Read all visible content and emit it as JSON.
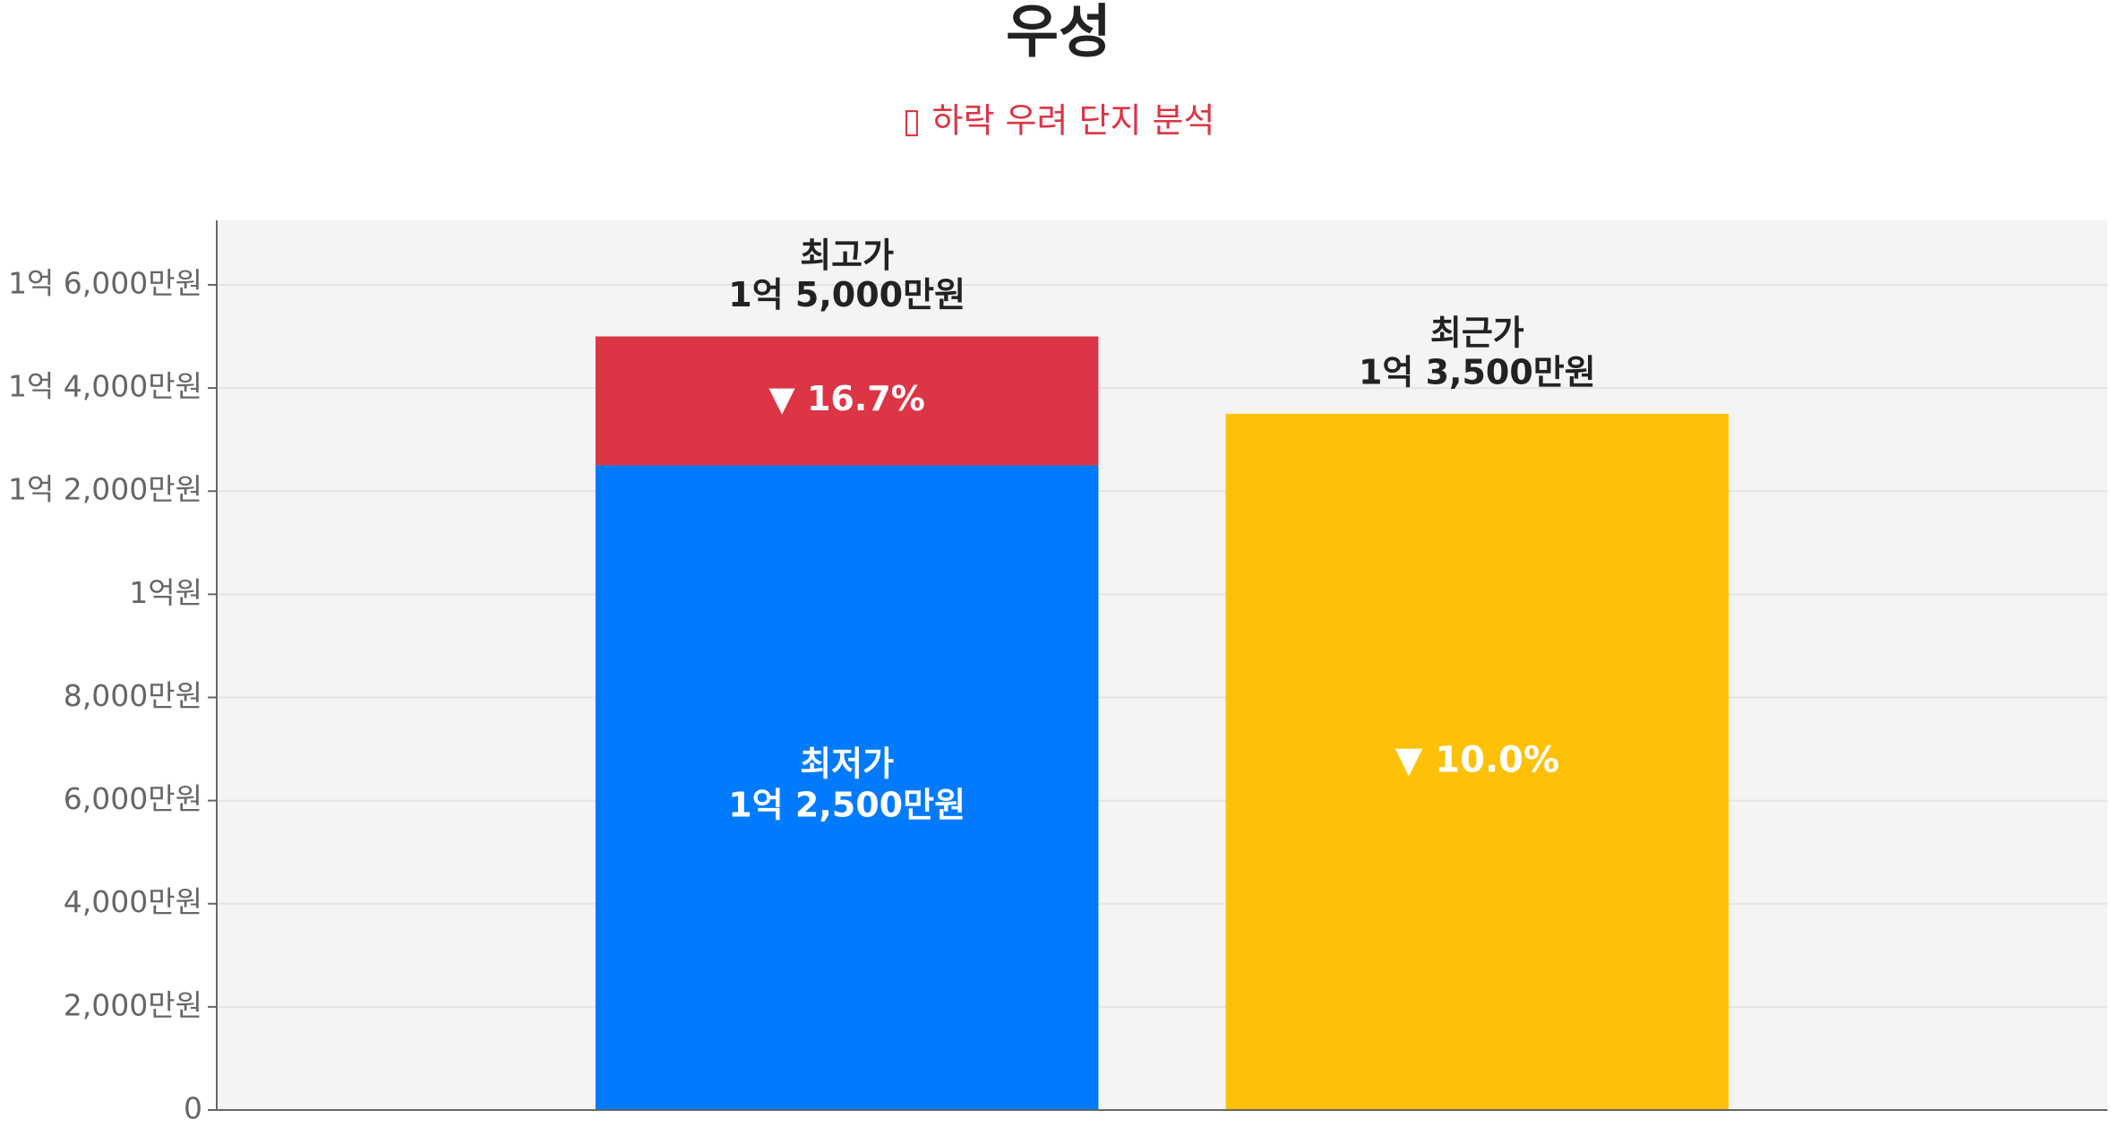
{
  "chart_data": {
    "type": "bar",
    "title": "우성",
    "subtitle": "▯ 하락 우려 단지 분석",
    "categories": [
      null,
      null
    ],
    "series": [
      {
        "name": "최저가",
        "color": "#007bff",
        "values": [
          12500,
          null
        ],
        "value_labels": [
          "1억 2,500만원",
          null
        ]
      },
      {
        "color": "#dc3545",
        "values": [
          2500,
          null
        ]
      },
      {
        "name": "최근가",
        "color": "#ffc107",
        "values": [
          null,
          13500
        ],
        "value_labels": [
          null,
          "1억 3,500만원"
        ]
      }
    ],
    "peak": {
      "name": "최고가",
      "value": 15000,
      "label": "1억 5,000만원"
    },
    "drops": [
      {
        "value": 16.7,
        "label": "▼ 16.7%"
      },
      {
        "value": 10.0,
        "label": "▼ 10.0%"
      }
    ],
    "ylim": [
      0,
      17250
    ],
    "yticks": [
      0,
      {
        "value": 2000,
        "label": "2,000만원"
      },
      {
        "value": 4000,
        "label": "4,000만원"
      },
      {
        "value": 6000,
        "label": "6,000만원"
      },
      {
        "value": 8000,
        "label": "8,000만원"
      },
      {
        "value": 10000,
        "label": "1억원"
      },
      {
        "value": 12000,
        "label": "1억 2,000만원"
      },
      {
        "value": 14000,
        "label": "1억 4,000만원"
      },
      {
        "value": 16000,
        "label": "1억 6,000만원"
      }
    ],
    "grid": true
  }
}
